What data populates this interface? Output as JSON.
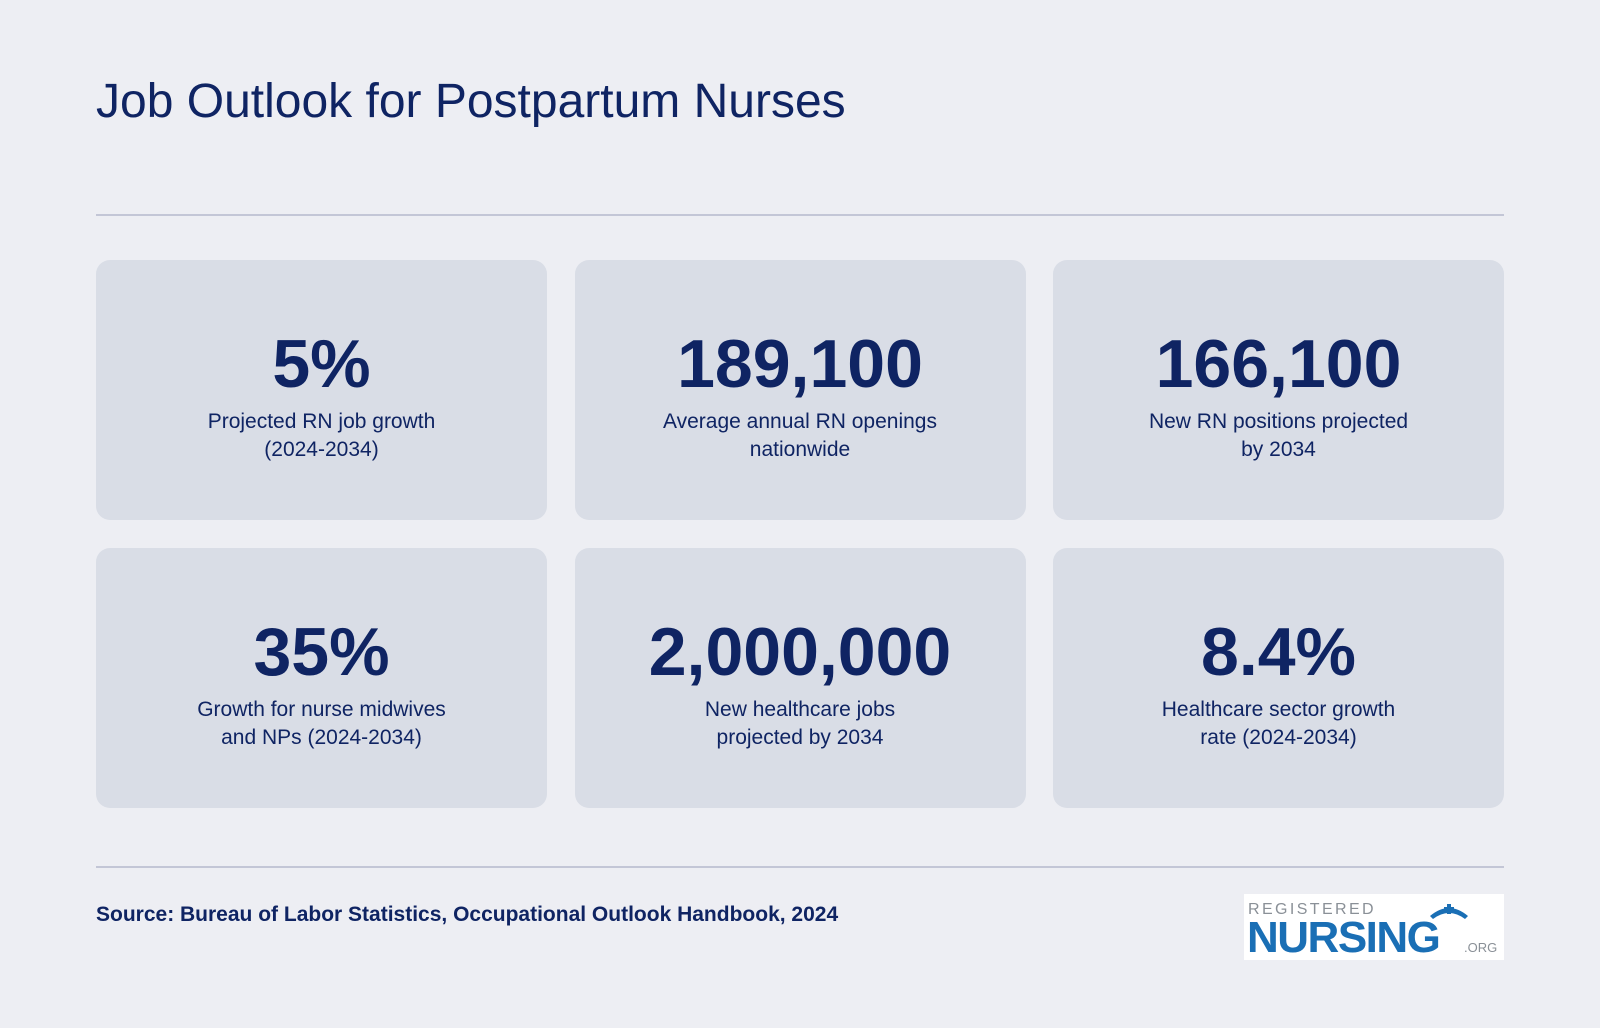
{
  "title": "Job Outlook for Postpartum Nurses",
  "stats": [
    {
      "value": "5%",
      "label_lines": [
        "Projected RN job growth",
        "(2024-2034)"
      ]
    },
    {
      "value": "189,100",
      "label_lines": [
        "Average annual RN openings",
        "nationwide"
      ]
    },
    {
      "value": "166,100",
      "label_lines": [
        "New RN positions projected",
        "by 2034"
      ]
    },
    {
      "value": "35%",
      "label_lines": [
        "Growth for nurse midwives",
        "and NPs (2024-2034)"
      ]
    },
    {
      "value": "2,000,000",
      "label_lines": [
        "New healthcare jobs",
        "projected by 2034"
      ]
    },
    {
      "value": "8.4%",
      "label_lines": [
        "Healthcare sector growth",
        "rate (2024-2034)"
      ]
    }
  ],
  "source": "Source: Bureau of Labor Statistics, Occupational Outlook Handbook, 2024",
  "logo": {
    "top_text": "REGISTERED",
    "main_text": "NURSING",
    "suffix": ".ORG",
    "icon": "nurse-cap-icon"
  },
  "colors": {
    "background": "#edeef3",
    "card": "#d9dde6",
    "text": "#0f2463",
    "logo_blue": "#1a6fb5",
    "logo_gray": "#8a9097"
  }
}
